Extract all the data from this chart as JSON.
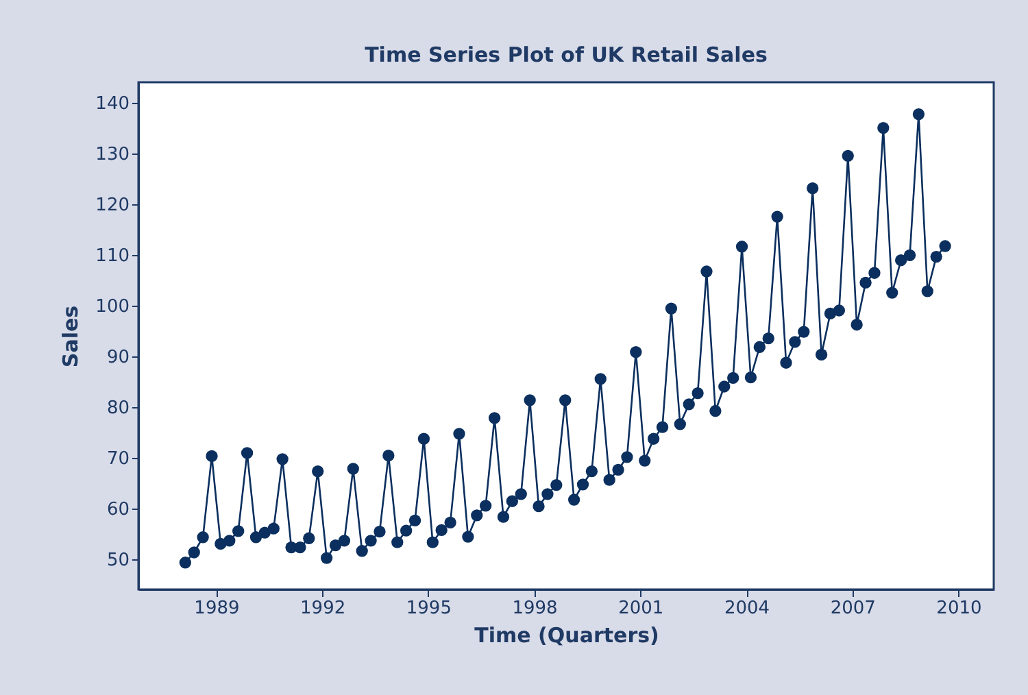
{
  "chart_data": {
    "type": "line",
    "title": "Time Series Plot of UK Retail Sales",
    "xlabel": "Time (Quarters)",
    "ylabel": "Sales",
    "x": [
      1988.125,
      1988.375,
      1988.625,
      1988.875,
      1989.125,
      1989.375,
      1989.625,
      1989.875,
      1990.125,
      1990.375,
      1990.625,
      1990.875,
      1991.125,
      1991.375,
      1991.625,
      1991.875,
      1992.125,
      1992.375,
      1992.625,
      1992.875,
      1993.125,
      1993.375,
      1993.625,
      1993.875,
      1994.125,
      1994.375,
      1994.625,
      1994.875,
      1995.125,
      1995.375,
      1995.625,
      1995.875,
      1996.125,
      1996.375,
      1996.625,
      1996.875,
      1997.125,
      1997.375,
      1997.625,
      1997.875,
      1998.125,
      1998.375,
      1998.625,
      1998.875,
      1999.125,
      1999.375,
      1999.625,
      1999.875,
      2000.125,
      2000.375,
      2000.625,
      2000.875,
      2001.125,
      2001.375,
      2001.625,
      2001.875,
      2002.125,
      2002.375,
      2002.625,
      2002.875,
      2003.125,
      2003.375,
      2003.625,
      2003.875,
      2004.125,
      2004.375,
      2004.625,
      2004.875,
      2005.125,
      2005.375,
      2005.625,
      2005.875,
      2006.125,
      2006.375,
      2006.625,
      2006.875,
      2007.125,
      2007.375,
      2007.625,
      2007.875,
      2008.125,
      2008.375,
      2008.625,
      2008.875,
      2009.125,
      2009.375,
      2009.625
    ],
    "values": [
      49.3,
      51.3,
      54.3,
      70.3,
      53.0,
      53.6,
      55.5,
      70.9,
      54.3,
      55.2,
      56.0,
      69.7,
      52.3,
      52.3,
      54.1,
      67.3,
      50.2,
      52.7,
      53.6,
      67.8,
      51.6,
      53.6,
      55.4,
      70.4,
      53.3,
      55.6,
      57.6,
      73.7,
      53.3,
      55.7,
      57.2,
      74.7,
      54.4,
      58.6,
      60.5,
      77.8,
      58.3,
      61.4,
      62.8,
      81.3,
      60.4,
      62.8,
      64.6,
      81.3,
      61.7,
      64.7,
      67.3,
      85.5,
      65.6,
      67.6,
      70.1,
      90.8,
      69.4,
      73.7,
      76.0,
      99.4,
      76.6,
      80.5,
      82.7,
      106.7,
      79.2,
      84.0,
      85.7,
      111.6,
      85.8,
      91.8,
      93.5,
      117.5,
      88.7,
      92.8,
      94.8,
      123.1,
      90.3,
      98.4,
      99.0,
      129.5,
      96.2,
      104.5,
      106.4,
      135.0,
      102.5,
      108.9,
      109.9,
      137.7,
      102.8,
      109.6,
      111.7
    ],
    "color": "#0b2f5e",
    "marker": "circle",
    "line_style": "solid",
    "xlim": [
      1986.8,
      2011.0
    ],
    "xticks": [
      1989,
      1992,
      1995,
      1998,
      2001,
      2004,
      2007,
      2010
    ],
    "ylim": [
      44,
      144
    ],
    "yticks": [
      50,
      60,
      70,
      80,
      90,
      100,
      110,
      120,
      130,
      140
    ],
    "grid": false
  }
}
